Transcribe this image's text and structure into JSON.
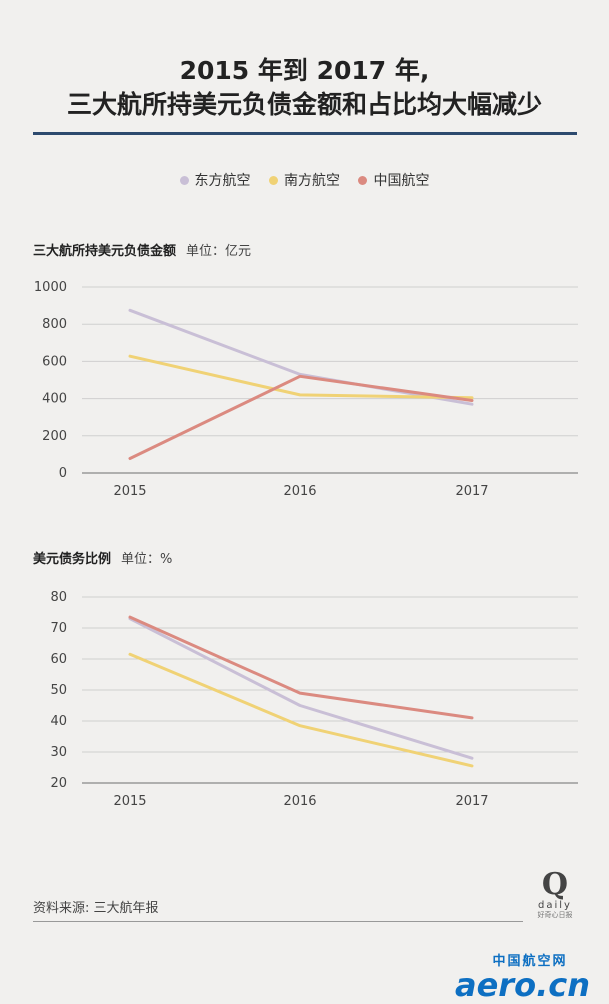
{
  "title_line1": "2015 年到 2017 年,",
  "title_line2": "三大航所持美元负债金额和占比均大幅减少",
  "legend": [
    {
      "label": "东方航空",
      "color": "#c9bfd6"
    },
    {
      "label": "南方航空",
      "color": "#f0d275"
    },
    {
      "label": "中国航空",
      "color": "#db8a80"
    }
  ],
  "chart1_heading": "三大航所持美元负债金额",
  "chart1_unit": "单位：亿元",
  "chart2_heading": "美元债务比例",
  "chart2_unit": "单位：%",
  "source": "资料来源: 三大航年报",
  "logo_q": "Q",
  "logo_daily": "daily",
  "logo_cn": "好奇心日报",
  "watermark_cn": "中国航空网",
  "watermark_en": "aero.cn",
  "chart_data": [
    {
      "type": "line",
      "categories": [
        "2015",
        "2016",
        "2017"
      ],
      "ylim": [
        0,
        1000
      ],
      "yticks": [
        0,
        200,
        400,
        600,
        800,
        1000
      ],
      "series": [
        {
          "name": "东方航空",
          "color": "#c9bfd6",
          "values": [
            875,
            530,
            370
          ]
        },
        {
          "name": "南方航空",
          "color": "#f0d275",
          "values": [
            628,
            420,
            405
          ]
        },
        {
          "name": "中国航空",
          "color": "#db8a80",
          "values": [
            78,
            520,
            390
          ]
        }
      ]
    },
    {
      "type": "line",
      "categories": [
        "2015",
        "2016",
        "2017"
      ],
      "ylim": [
        20,
        80
      ],
      "yticks": [
        20,
        30,
        40,
        50,
        60,
        70,
        80
      ],
      "series": [
        {
          "name": "东方航空",
          "color": "#c9bfd6",
          "values": [
            73,
            45,
            28
          ]
        },
        {
          "name": "南方航空",
          "color": "#f0d275",
          "values": [
            61.5,
            38.5,
            25.5
          ]
        },
        {
          "name": "中国航空",
          "color": "#db8a80",
          "values": [
            73.5,
            49,
            41
          ]
        }
      ]
    }
  ]
}
